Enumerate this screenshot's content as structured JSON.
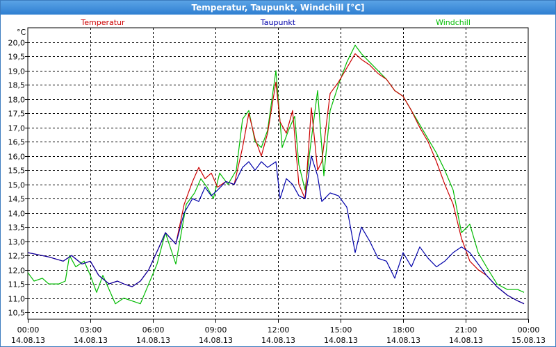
{
  "window": {
    "title": "Temperatur, Taupunkt, Windchill [°C]"
  },
  "chart_data": {
    "type": "line",
    "title": "Temperatur, Taupunkt, Windchill [°C]",
    "ylabel": "°C",
    "xlabel": "",
    "ylim": [
      10.5,
      20.0
    ],
    "xlim": [
      0,
      24
    ],
    "grid": true,
    "legend_position": "top",
    "y_ticks": [
      "20,0",
      "19,5",
      "19,0",
      "18,5",
      "18,0",
      "17,5",
      "17,0",
      "16,5",
      "16,0",
      "15,5",
      "15,0",
      "14,5",
      "14,0",
      "13,5",
      "13,0",
      "12,5",
      "12,0",
      "11,5",
      "11,0",
      "10,5"
    ],
    "x_ticks": [
      {
        "time": "00:00",
        "date": "14.08.13"
      },
      {
        "time": "03:00",
        "date": "14.08.13"
      },
      {
        "time": "06:00",
        "date": "14.08.13"
      },
      {
        "time": "09:00",
        "date": "14.08.13"
      },
      {
        "time": "12:00",
        "date": "14.08.13"
      },
      {
        "time": "15:00",
        "date": "14.08.13"
      },
      {
        "time": "18:00",
        "date": "14.08.13"
      },
      {
        "time": "21:00",
        "date": "14.08.13"
      },
      {
        "time": "00:00",
        "date": "15.08.13"
      }
    ],
    "series": [
      {
        "name": "Temperatur",
        "color": "#cc0000",
        "points": [
          [
            0,
            12.6
          ],
          [
            1,
            12.45
          ],
          [
            1.7,
            12.3
          ],
          [
            2.1,
            12.5
          ],
          [
            2.6,
            12.2
          ],
          [
            3.0,
            12.3
          ],
          [
            3.4,
            11.8
          ],
          [
            3.9,
            11.5
          ],
          [
            4.3,
            11.6
          ],
          [
            4.6,
            11.5
          ],
          [
            5.0,
            11.4
          ],
          [
            5.4,
            11.6
          ],
          [
            5.8,
            12.0
          ],
          [
            6.3,
            12.8
          ],
          [
            6.6,
            13.3
          ],
          [
            7.1,
            12.9
          ],
          [
            7.5,
            14.3
          ],
          [
            7.9,
            15.1
          ],
          [
            8.2,
            15.6
          ],
          [
            8.5,
            15.2
          ],
          [
            8.8,
            15.4
          ],
          [
            9.1,
            14.9
          ],
          [
            9.5,
            15.1
          ],
          [
            9.9,
            15.0
          ],
          [
            10.3,
            16.3
          ],
          [
            10.6,
            17.5
          ],
          [
            10.9,
            16.6
          ],
          [
            11.2,
            16.0
          ],
          [
            11.5,
            16.8
          ],
          [
            11.9,
            18.6
          ],
          [
            12.1,
            17.2
          ],
          [
            12.4,
            16.8
          ],
          [
            12.7,
            17.6
          ],
          [
            13.0,
            15.0
          ],
          [
            13.3,
            14.5
          ],
          [
            13.6,
            17.7
          ],
          [
            13.9,
            15.5
          ],
          [
            14.1,
            15.8
          ],
          [
            14.5,
            18.2
          ],
          [
            14.9,
            18.6
          ],
          [
            15.3,
            19.1
          ],
          [
            15.7,
            19.6
          ],
          [
            16.0,
            19.4
          ],
          [
            16.4,
            19.2
          ],
          [
            16.8,
            18.9
          ],
          [
            17.2,
            18.7
          ],
          [
            17.6,
            18.3
          ],
          [
            18.0,
            18.1
          ],
          [
            18.4,
            17.6
          ],
          [
            18.8,
            17.0
          ],
          [
            19.2,
            16.5
          ],
          [
            19.6,
            15.8
          ],
          [
            20.0,
            15.0
          ],
          [
            20.4,
            14.3
          ],
          [
            20.8,
            13.1
          ],
          [
            21.2,
            12.3
          ],
          [
            21.6,
            12.0
          ],
          [
            22.0,
            11.8
          ],
          [
            22.5,
            11.4
          ],
          [
            23.0,
            11.1
          ],
          [
            23.5,
            10.9
          ],
          [
            23.8,
            10.8
          ]
        ]
      },
      {
        "name": "Taupunkt",
        "color": "#0000aa",
        "points": [
          [
            0,
            12.6
          ],
          [
            1,
            12.45
          ],
          [
            1.7,
            12.3
          ],
          [
            2.1,
            12.5
          ],
          [
            2.6,
            12.2
          ],
          [
            3.0,
            12.3
          ],
          [
            3.4,
            11.8
          ],
          [
            3.9,
            11.5
          ],
          [
            4.3,
            11.6
          ],
          [
            4.6,
            11.5
          ],
          [
            5.0,
            11.4
          ],
          [
            5.4,
            11.6
          ],
          [
            5.8,
            12.0
          ],
          [
            6.3,
            12.8
          ],
          [
            6.6,
            13.3
          ],
          [
            7.1,
            12.9
          ],
          [
            7.5,
            14.0
          ],
          [
            7.9,
            14.5
          ],
          [
            8.2,
            14.4
          ],
          [
            8.5,
            14.9
          ],
          [
            8.8,
            14.6
          ],
          [
            9.1,
            14.8
          ],
          [
            9.5,
            15.1
          ],
          [
            9.9,
            15.0
          ],
          [
            10.3,
            15.6
          ],
          [
            10.6,
            15.8
          ],
          [
            10.9,
            15.5
          ],
          [
            11.2,
            15.8
          ],
          [
            11.5,
            15.6
          ],
          [
            11.9,
            15.8
          ],
          [
            12.1,
            14.5
          ],
          [
            12.4,
            15.2
          ],
          [
            12.7,
            15.0
          ],
          [
            13.0,
            14.6
          ],
          [
            13.3,
            14.5
          ],
          [
            13.6,
            16.0
          ],
          [
            13.9,
            15.3
          ],
          [
            14.1,
            14.4
          ],
          [
            14.5,
            14.7
          ],
          [
            14.9,
            14.6
          ],
          [
            15.3,
            14.2
          ],
          [
            15.7,
            12.6
          ],
          [
            16.0,
            13.5
          ],
          [
            16.4,
            13.0
          ],
          [
            16.8,
            12.4
          ],
          [
            17.2,
            12.3
          ],
          [
            17.6,
            11.7
          ],
          [
            18.0,
            12.6
          ],
          [
            18.4,
            12.1
          ],
          [
            18.8,
            12.8
          ],
          [
            19.2,
            12.4
          ],
          [
            19.6,
            12.1
          ],
          [
            20.0,
            12.3
          ],
          [
            20.4,
            12.6
          ],
          [
            20.8,
            12.8
          ],
          [
            21.2,
            12.6
          ],
          [
            21.6,
            12.2
          ],
          [
            22.0,
            11.8
          ],
          [
            22.5,
            11.4
          ],
          [
            23.0,
            11.1
          ],
          [
            23.5,
            10.9
          ],
          [
            23.8,
            10.8
          ]
        ]
      },
      {
        "name": "Windchill",
        "color": "#00bb00",
        "points": [
          [
            0,
            11.9
          ],
          [
            0.3,
            11.6
          ],
          [
            0.7,
            11.7
          ],
          [
            1,
            11.5
          ],
          [
            1.5,
            11.5
          ],
          [
            1.8,
            11.6
          ],
          [
            2.0,
            12.5
          ],
          [
            2.3,
            12.1
          ],
          [
            2.7,
            12.3
          ],
          [
            3.0,
            11.8
          ],
          [
            3.3,
            11.2
          ],
          [
            3.6,
            11.8
          ],
          [
            3.9,
            11.3
          ],
          [
            4.2,
            10.8
          ],
          [
            4.6,
            11.0
          ],
          [
            5.0,
            10.9
          ],
          [
            5.4,
            10.8
          ],
          [
            5.8,
            11.5
          ],
          [
            6.2,
            12.2
          ],
          [
            6.6,
            13.3
          ],
          [
            7.1,
            12.2
          ],
          [
            7.6,
            14.3
          ],
          [
            8.0,
            14.7
          ],
          [
            8.3,
            15.2
          ],
          [
            8.6,
            14.9
          ],
          [
            8.9,
            14.5
          ],
          [
            9.2,
            15.4
          ],
          [
            9.6,
            15.0
          ],
          [
            10.0,
            15.5
          ],
          [
            10.3,
            17.3
          ],
          [
            10.6,
            17.6
          ],
          [
            10.9,
            16.5
          ],
          [
            11.2,
            16.3
          ],
          [
            11.5,
            16.9
          ],
          [
            11.9,
            19.0
          ],
          [
            12.2,
            16.3
          ],
          [
            12.5,
            16.9
          ],
          [
            12.8,
            17.4
          ],
          [
            13.0,
            15.7
          ],
          [
            13.3,
            14.8
          ],
          [
            13.6,
            16.6
          ],
          [
            13.9,
            18.3
          ],
          [
            14.2,
            15.3
          ],
          [
            14.5,
            17.6
          ],
          [
            14.9,
            18.5
          ],
          [
            15.3,
            19.3
          ],
          [
            15.7,
            19.9
          ],
          [
            16.0,
            19.6
          ],
          [
            16.4,
            19.3
          ],
          [
            16.8,
            19.0
          ],
          [
            17.2,
            18.7
          ],
          [
            17.6,
            18.3
          ],
          [
            18.0,
            18.1
          ],
          [
            18.4,
            17.6
          ],
          [
            18.8,
            17.1
          ],
          [
            19.2,
            16.6
          ],
          [
            19.6,
            16.1
          ],
          [
            20.0,
            15.5
          ],
          [
            20.4,
            14.8
          ],
          [
            20.8,
            13.3
          ],
          [
            21.2,
            13.6
          ],
          [
            21.6,
            12.6
          ],
          [
            22.0,
            12.1
          ],
          [
            22.5,
            11.5
          ],
          [
            23.0,
            11.3
          ],
          [
            23.5,
            11.3
          ],
          [
            23.8,
            11.2
          ]
        ]
      }
    ]
  }
}
